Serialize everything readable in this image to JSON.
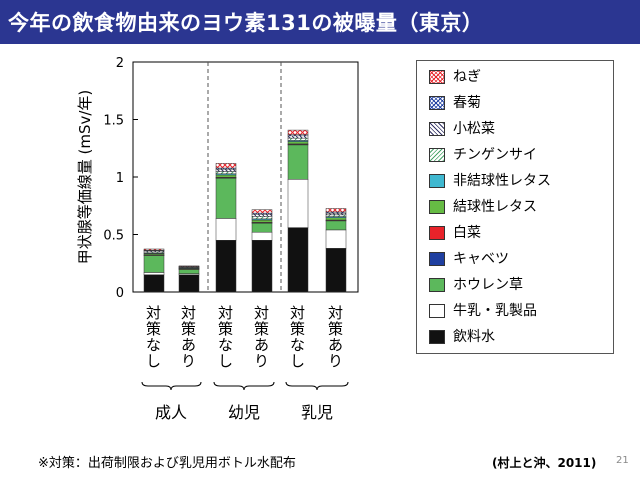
{
  "title": "今年の飲食物由来のヨウ素131の被曝量（東京）",
  "footnote": "※対策：出荷制限および乳児用ボトル水配布",
  "citation": "(村上と沖、2011)",
  "page_number": "21",
  "chart_data": {
    "type": "bar",
    "stacked": true,
    "ylabel": "甲状腺等価線量 (mSv/年)",
    "ylim": [
      0,
      2
    ],
    "yticks": [
      "0",
      "0.5",
      "1",
      "1.5",
      "2"
    ],
    "groups": [
      {
        "label": "成人",
        "bars": [
          "対策なし",
          "対策あり"
        ]
      },
      {
        "label": "幼児",
        "bars": [
          "対策なし",
          "対策あり"
        ]
      },
      {
        "label": "乳児",
        "bars": [
          "対策なし",
          "対策あり"
        ]
      }
    ],
    "categories": [
      "成人 対策なし",
      "成人 対策あり",
      "幼児 対策なし",
      "幼児 対策あり",
      "乳児 対策なし",
      "乳児 対策あり"
    ],
    "series": [
      {
        "name": "飲料水",
        "color": "#111111",
        "pattern": "solid",
        "values": [
          0.15,
          0.15,
          0.45,
          0.45,
          0.56,
          0.38
        ]
      },
      {
        "name": "牛乳・乳製品",
        "color": "#ffffff",
        "pattern": "solid",
        "values": [
          0.02,
          0.01,
          0.19,
          0.07,
          0.42,
          0.16
        ]
      },
      {
        "name": "ホウレン草",
        "color": "#5cb85c",
        "pattern": "solid",
        "values": [
          0.15,
          0.04,
          0.35,
          0.08,
          0.3,
          0.08
        ]
      },
      {
        "name": "キャベツ",
        "color": "#1f3fa0",
        "pattern": "solid",
        "values": [
          0.002,
          0.001,
          0.004,
          0.003,
          0.004,
          0.003
        ]
      },
      {
        "name": "白菜",
        "color": "#e8232a",
        "pattern": "solid",
        "values": [
          0.002,
          0.001,
          0.004,
          0.003,
          0.004,
          0.003
        ]
      },
      {
        "name": "結球性レタス",
        "color": "#66bb44",
        "pattern": "solid",
        "values": [
          0.01,
          0.005,
          0.02,
          0.02,
          0.02,
          0.02
        ]
      },
      {
        "name": "非結球性レタス",
        "color": "#3fb8d0",
        "pattern": "solid",
        "values": [
          0.005,
          0.003,
          0.01,
          0.01,
          0.01,
          0.01
        ]
      },
      {
        "name": "チンゲンサイ",
        "color": "#4aa66a",
        "pattern": "diagonal",
        "values": [
          0.01,
          0.005,
          0.02,
          0.02,
          0.02,
          0.015
        ]
      },
      {
        "name": "小松菜",
        "color": "#333366",
        "pattern": "diagonal-dense",
        "values": [
          0.01,
          0.005,
          0.02,
          0.02,
          0.02,
          0.015
        ]
      },
      {
        "name": "春菊",
        "color": "#1f3fa0",
        "pattern": "crosshatch",
        "values": [
          0.005,
          0.002,
          0.01,
          0.01,
          0.01,
          0.01
        ]
      },
      {
        "name": "ねぎ",
        "color": "#e8232a",
        "pattern": "crosshatch",
        "values": [
          0.01,
          0.005,
          0.04,
          0.03,
          0.04,
          0.03
        ]
      }
    ],
    "legend": [
      "ねぎ",
      "春菊",
      "小松菜",
      "チンゲンサイ",
      "非結球性レタス",
      "結球性レタス",
      "白菜",
      "キャベツ",
      "ホウレン草",
      "牛乳・乳製品",
      "飲料水"
    ]
  }
}
